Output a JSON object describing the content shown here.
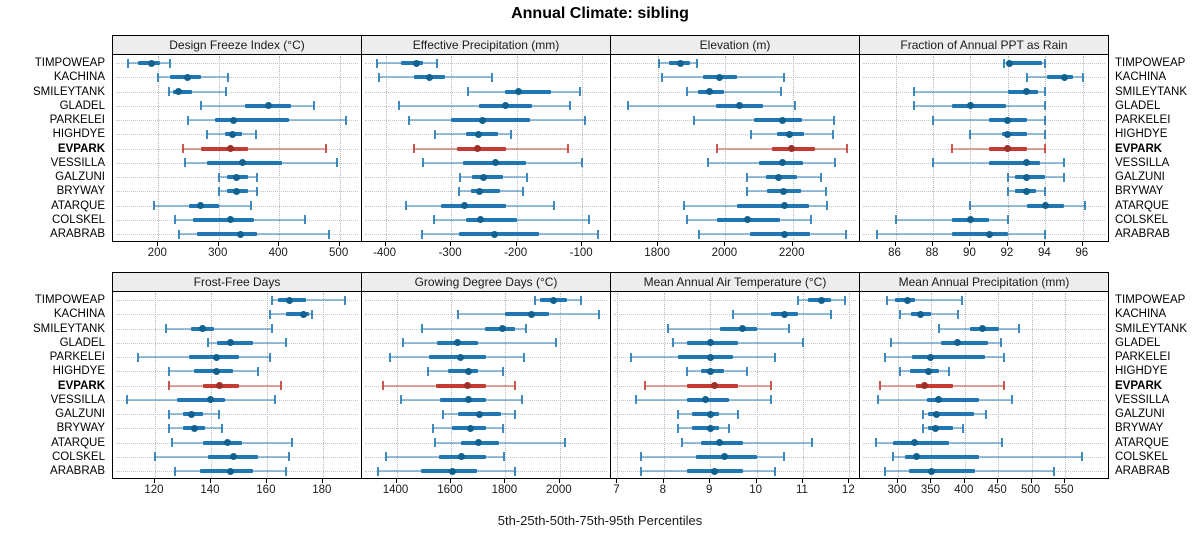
{
  "title": "Annual Climate: sibling",
  "caption": "5th-25th-50th-75th-95th Percentiles",
  "highlight_site": "EVPARK",
  "sites": [
    "TIMPOWEAP",
    "KACHINA",
    "SMILEYTANK",
    "GLADEL",
    "PARKELEI",
    "HIGHDYE",
    "EVPARK",
    "VESSILLA",
    "GALZUNI",
    "BRYWAY",
    "ATARQUE",
    "COLSKEL",
    "ARABRAB"
  ],
  "colors": {
    "series": "#1f77b4",
    "series_dot": "#10618f",
    "highlight": "#c23c33",
    "highlight_dot": "#9e2f28",
    "strip_bg": "#ededed",
    "grid": "#bdbdbd",
    "border": "#000000",
    "text": "#000000"
  },
  "chart_data": {
    "type": "percentile-dotplot-trellis",
    "percentiles": [
      5,
      25,
      50,
      75,
      95
    ],
    "layout_hint": "2 rows x 4 columns, site labels on both sides, dotted grid, EVPARK highlighted in red",
    "panels": [
      {
        "title": "Design Freeze Index (°C)",
        "grid_row": 1,
        "grid_col": 1,
        "xlim": [
          125,
          537
        ],
        "ticks": [
          200,
          300,
          400,
          500
        ],
        "values": {
          "TIMPOWEAP": [
            150,
            167,
            188,
            203,
            219
          ],
          "KACHINA": [
            200,
            219,
            249,
            270,
            315
          ],
          "SMILEYTANK": [
            218,
            224,
            233,
            255,
            312
          ],
          "GLADEL": [
            270,
            344,
            382,
            419,
            458
          ],
          "PARKELEI": [
            249,
            294,
            325,
            417,
            510
          ],
          "HIGHDYE": [
            281,
            310,
            322,
            338,
            362
          ],
          "EVPARK": [
            240,
            270,
            320,
            348,
            477
          ],
          "VESSILLA": [
            244,
            280,
            339,
            405,
            495
          ],
          "GALZUNI": [
            300,
            314,
            329,
            348,
            364
          ],
          "BRYWAY": [
            300,
            314,
            329,
            348,
            363
          ],
          "ATARQUE": [
            193,
            250,
            269,
            300,
            354
          ],
          "COLSKEL": [
            227,
            258,
            319,
            358,
            443
          ],
          "ARABRAB": [
            235,
            264,
            336,
            364,
            483
          ]
        }
      },
      {
        "title": "Effective Precipitation (mm)",
        "grid_row": 1,
        "grid_col": 2,
        "xlim": [
          -436,
          -56
        ],
        "ticks": [
          -400,
          -300,
          -200,
          -100
        ],
        "values": {
          "TIMPOWEAP": [
            -413,
            -377,
            -353,
            -343,
            -321
          ],
          "KACHINA": [
            -410,
            -356,
            -333,
            -309,
            -237
          ],
          "SMILEYTANK": [
            -274,
            -218,
            -197,
            -148,
            -103
          ],
          "GLADEL": [
            -379,
            -257,
            -217,
            -177,
            -119
          ],
          "PARKELEI": [
            -364,
            -300,
            -252,
            -179,
            -95
          ],
          "HIGHDYE": [
            -324,
            -278,
            -258,
            -229,
            -209
          ],
          "EVPARK": [
            -356,
            -291,
            -260,
            -216,
            -121
          ],
          "VESSILLA": [
            -343,
            -282,
            -233,
            -186,
            -101
          ],
          "GALZUNI": [
            -286,
            -268,
            -251,
            -221,
            -184
          ],
          "BRYWAY": [
            -288,
            -270,
            -256,
            -226,
            -191
          ],
          "ATARQUE": [
            -369,
            -315,
            -279,
            -216,
            -143
          ],
          "COLSKEL": [
            -326,
            -278,
            -255,
            -199,
            -90
          ],
          "ARABRAB": [
            -345,
            -288,
            -234,
            -166,
            -76
          ]
        }
      },
      {
        "title": "Elevation (m)",
        "grid_row": 1,
        "grid_col": 3,
        "xlim": [
          1660,
          2400
        ],
        "ticks": [
          1800,
          2000,
          2200
        ],
        "values": {
          "TIMPOWEAP": [
            1802,
            1832,
            1867,
            1894,
            1917
          ],
          "KACHINA": [
            1812,
            1932,
            1982,
            2035,
            2175
          ],
          "SMILEYTANK": [
            1885,
            1919,
            1954,
            1997,
            2165
          ],
          "GLADEL": [
            1712,
            1972,
            2042,
            2112,
            2207
          ],
          "PARKELEI": [
            1907,
            2085,
            2169,
            2227,
            2322
          ],
          "HIGHDYE": [
            2075,
            2152,
            2190,
            2235,
            2320
          ],
          "EVPARK": [
            1975,
            2137,
            2197,
            2265,
            2360
          ],
          "VESSILLA": [
            1947,
            2100,
            2170,
            2232,
            2325
          ],
          "GALZUNI": [
            2065,
            2122,
            2157,
            2212,
            2285
          ],
          "BRYWAY": [
            2065,
            2125,
            2172,
            2225,
            2300
          ],
          "ATARQUE": [
            1877,
            2035,
            2177,
            2247,
            2302
          ],
          "COLSKEL": [
            1885,
            1975,
            2067,
            2162,
            2255
          ],
          "ARABRAB": [
            1922,
            2072,
            2177,
            2252,
            2357
          ]
        }
      },
      {
        "title": "Fraction of Annual PPT as Rain",
        "grid_row": 1,
        "grid_col": 4,
        "xlim": [
          84.1,
          97.4
        ],
        "ticks": [
          86,
          88,
          90,
          92,
          94,
          96
        ],
        "values": {
          "TIMPOWEAP": [
            91.8,
            92.0,
            92.1,
            93.8,
            94.0
          ],
          "KACHINA": [
            93.0,
            94.1,
            95.0,
            95.5,
            96.0
          ],
          "SMILEYTANK": [
            87.0,
            92.0,
            93.0,
            93.6,
            94.0
          ],
          "GLADEL": [
            87.0,
            89.0,
            90.0,
            91.9,
            94.0
          ],
          "PARKELEI": [
            88.0,
            91.0,
            92.0,
            93.0,
            94.0
          ],
          "HIGHDYE": [
            90.0,
            91.7,
            92.0,
            93.0,
            94.0
          ],
          "EVPARK": [
            89.0,
            91.0,
            92.0,
            93.0,
            94.0
          ],
          "VESSILLA": [
            88.0,
            91.0,
            93.0,
            93.7,
            95.0
          ],
          "GALZUNI": [
            92.0,
            92.4,
            93.0,
            94.0,
            95.0
          ],
          "BRYWAY": [
            92.0,
            92.4,
            93.0,
            93.5,
            94.0
          ],
          "ATARQUE": [
            90.0,
            93.0,
            94.0,
            95.0,
            96.1
          ],
          "COLSKEL": [
            86.0,
            89.0,
            90.0,
            91.0,
            92.0
          ],
          "ARABRAB": [
            85.0,
            89.0,
            91.0,
            92.0,
            94.0
          ]
        }
      },
      {
        "title": "Frost-Free Days",
        "grid_row": 2,
        "grid_col": 1,
        "xlim": [
          105,
          194
        ],
        "ticks": [
          120,
          140,
          160,
          180
        ],
        "values": {
          "TIMPOWEAP": [
            162,
            164,
            168,
            174,
            188
          ],
          "KACHINA": [
            161,
            167,
            173,
            175,
            176
          ],
          "SMILEYTANK": [
            124,
            133,
            137,
            141,
            162
          ],
          "GLADEL": [
            139,
            142,
            147,
            155,
            167
          ],
          "PARKELEI": [
            114,
            132,
            142,
            150,
            161
          ],
          "HIGHDYE": [
            125,
            134,
            142,
            148,
            157
          ],
          "EVPARK": [
            125,
            137,
            143,
            150,
            165
          ],
          "VESSILLA": [
            110,
            128,
            140,
            145,
            163
          ],
          "GALZUNI": [
            125,
            130,
            133,
            137,
            143
          ],
          "BRYWAY": [
            125,
            130,
            134,
            138,
            144
          ],
          "ATARQUE": [
            126,
            137,
            146,
            151,
            169
          ],
          "COLSKEL": [
            120,
            139,
            148,
            157,
            168
          ],
          "ARABRAB": [
            127,
            136,
            147,
            155,
            167
          ]
        }
      },
      {
        "title": "Growing Degree Days (°C)",
        "grid_row": 2,
        "grid_col": 2,
        "xlim": [
          1273,
          2188
        ],
        "ticks": [
          1400,
          1600,
          1800,
          2000
        ],
        "values": {
          "TIMPOWEAP": [
            1910,
            1927,
            1975,
            2025,
            2077
          ],
          "KACHINA": [
            1625,
            1800,
            1895,
            1960,
            2145
          ],
          "SMILEYTANK": [
            1495,
            1725,
            1790,
            1835,
            1875
          ],
          "GLADEL": [
            1425,
            1550,
            1625,
            1700,
            1985
          ],
          "PARKELEI": [
            1375,
            1520,
            1635,
            1730,
            1870
          ],
          "HIGHDYE": [
            1515,
            1590,
            1665,
            1700,
            1790
          ],
          "EVPARK": [
            1350,
            1545,
            1660,
            1730,
            1835
          ],
          "VESSILLA": [
            1415,
            1560,
            1665,
            1730,
            1860
          ],
          "GALZUNI": [
            1570,
            1625,
            1705,
            1785,
            1835
          ],
          "BRYWAY": [
            1535,
            1605,
            1670,
            1730,
            1790
          ],
          "ATARQUE": [
            1540,
            1635,
            1700,
            1775,
            2020
          ],
          "COLSKEL": [
            1360,
            1555,
            1640,
            1730,
            1795
          ],
          "ARABRAB": [
            1330,
            1490,
            1605,
            1695,
            1835
          ]
        }
      },
      {
        "title": "Mean Annual Air Temperature (°C)",
        "grid_row": 2,
        "grid_col": 3,
        "xlim": [
          6.86,
          12.23
        ],
        "ticks": [
          7,
          8,
          9,
          10,
          11,
          12
        ],
        "values": {
          "TIMPOWEAP": [
            10.9,
            11.1,
            11.4,
            11.6,
            11.9
          ],
          "KACHINA": [
            9.5,
            10.3,
            10.6,
            10.9,
            11.6
          ],
          "SMILEYTANK": [
            8.1,
            9.2,
            9.7,
            10.0,
            10.7
          ],
          "GLADEL": [
            8.2,
            8.5,
            9.0,
            9.6,
            11.0
          ],
          "PARKELEI": [
            7.3,
            8.3,
            9.0,
            9.5,
            10.4
          ],
          "HIGHDYE": [
            8.5,
            8.8,
            9.0,
            9.3,
            9.8
          ],
          "EVPARK": [
            7.6,
            8.5,
            9.1,
            9.6,
            10.3
          ],
          "VESSILLA": [
            7.4,
            8.5,
            8.9,
            9.4,
            10.3
          ],
          "GALZUNI": [
            8.3,
            8.6,
            9.0,
            9.2,
            9.6
          ],
          "BRYWAY": [
            8.3,
            8.6,
            9.0,
            9.2,
            9.4
          ],
          "ATARQUE": [
            8.4,
            8.8,
            9.2,
            9.7,
            11.2
          ],
          "COLSKEL": [
            7.5,
            8.7,
            9.3,
            10.0,
            10.6
          ],
          "ARABRAB": [
            7.5,
            8.5,
            9.1,
            9.7,
            10.4
          ]
        }
      },
      {
        "title": "Mean Annual Precipitation (mm)",
        "grid_row": 2,
        "grid_col": 4,
        "xlim": [
          243,
          616
        ],
        "ticks": [
          300,
          350,
          400,
          450,
          500,
          550
        ],
        "values": {
          "TIMPOWEAP": [
            283,
            296,
            314,
            326,
            396
          ],
          "KACHINA": [
            303,
            319,
            333,
            350,
            390
          ],
          "SMILEYTANK": [
            362,
            408,
            426,
            451,
            481
          ],
          "GLADEL": [
            289,
            364,
            389,
            435,
            454
          ],
          "PARKELEI": [
            281,
            321,
            348,
            430,
            459
          ],
          "HIGHDYE": [
            303,
            318,
            346,
            362,
            376
          ],
          "EVPARK": [
            273,
            327,
            340,
            383,
            459
          ],
          "VESSILLA": [
            270,
            343,
            360,
            422,
            470
          ],
          "GALZUNI": [
            337,
            345,
            357,
            414,
            431
          ],
          "BRYWAY": [
            337,
            345,
            356,
            382,
            397
          ],
          "ATARQUE": [
            267,
            292,
            324,
            377,
            456
          ],
          "COLSKEL": [
            292,
            311,
            327,
            422,
            575
          ],
          "ARABRAB": [
            281,
            316,
            350,
            416,
            533
          ]
        }
      }
    ]
  }
}
